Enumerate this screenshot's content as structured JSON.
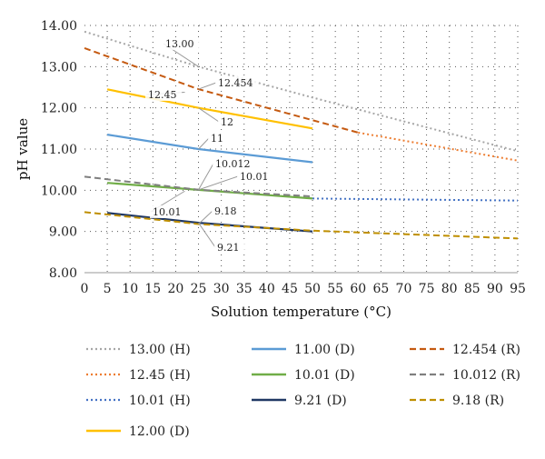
{
  "chart_data": {
    "type": "line",
    "title": "",
    "xlabel": "Solution temperature (°C)",
    "ylabel": "pH value",
    "xlim": [
      0,
      95
    ],
    "ylim": [
      8,
      14
    ],
    "grid": "dotted",
    "legend_position": "bottom",
    "x_ticks": [
      "0",
      "5",
      "10",
      "15",
      "20",
      "25",
      "30",
      "35",
      "40",
      "45",
      "50",
      "55",
      "60",
      "65",
      "70",
      "75",
      "80",
      "85",
      "90",
      "95"
    ],
    "y_ticks": [
      "8.00",
      "9.00",
      "10.00",
      "11.00",
      "12.00",
      "13.00",
      "14.00"
    ],
    "series": [
      {
        "name": "13.00 (H)",
        "color": "#a6a6a6",
        "style": "dotted",
        "x": [
          0,
          25,
          50,
          95
        ],
        "y": [
          13.85,
          13.0,
          12.25,
          10.95
        ]
      },
      {
        "name": "12.45 (H)",
        "color": "#ed7d31",
        "style": "dotted",
        "x": [
          60,
          95
        ],
        "y": [
          11.4,
          10.72
        ]
      },
      {
        "name": "10.01 (H)",
        "color": "#4472c4",
        "style": "dotted",
        "x": [
          50,
          95
        ],
        "y": [
          9.8,
          9.75
        ]
      },
      {
        "name": "12.00 (D)",
        "color": "#ffc000",
        "style": "solid",
        "x": [
          5,
          25,
          50
        ],
        "y": [
          12.45,
          12.0,
          11.5
        ]
      },
      {
        "name": "11.00 (D)",
        "color": "#5b9bd5",
        "style": "solid",
        "x": [
          5,
          25,
          50
        ],
        "y": [
          11.35,
          11.0,
          10.68
        ]
      },
      {
        "name": "10.01 (D)",
        "color": "#70ad47",
        "style": "solid",
        "x": [
          5,
          25,
          50
        ],
        "y": [
          10.18,
          10.01,
          9.8
        ]
      },
      {
        "name": "9.21 (D)",
        "color": "#203864",
        "style": "solid",
        "x": [
          5,
          25,
          50
        ],
        "y": [
          9.45,
          9.21,
          9.0
        ]
      },
      {
        "name": "12.454 (R)",
        "color": "#c55a11",
        "style": "dashed",
        "x": [
          0,
          25,
          60
        ],
        "y": [
          13.45,
          12.454,
          11.4
        ]
      },
      {
        "name": "10.012 (R)",
        "color": "#7f7f7f",
        "style": "dashed",
        "x": [
          0,
          25,
          50
        ],
        "y": [
          10.33,
          10.012,
          9.85
        ]
      },
      {
        "name": "9.18 (R)",
        "color": "#bf8f00",
        "style": "dashed",
        "x": [
          0,
          25,
          50,
          95
        ],
        "y": [
          9.47,
          9.18,
          9.02,
          8.83
        ]
      }
    ],
    "annotations": [
      {
        "text": "13.00",
        "x": 25,
        "y": 13.0
      },
      {
        "text": "12.454",
        "x": 25,
        "y": 12.454
      },
      {
        "text": "12.45",
        "x": 22,
        "y": 12.38
      },
      {
        "text": "12",
        "x": 25,
        "y": 12.0
      },
      {
        "text": "11",
        "x": 25,
        "y": 11.0
      },
      {
        "text": "10.012",
        "x": 25,
        "y": 10.012
      },
      {
        "text": "10.01",
        "x": 25,
        "y": 10.01
      },
      {
        "text": "10.01",
        "x": 22,
        "y": 9.98
      },
      {
        "text": "9.18",
        "x": 25,
        "y": 9.18
      },
      {
        "text": "9.21",
        "x": 25,
        "y": 9.21
      }
    ]
  }
}
